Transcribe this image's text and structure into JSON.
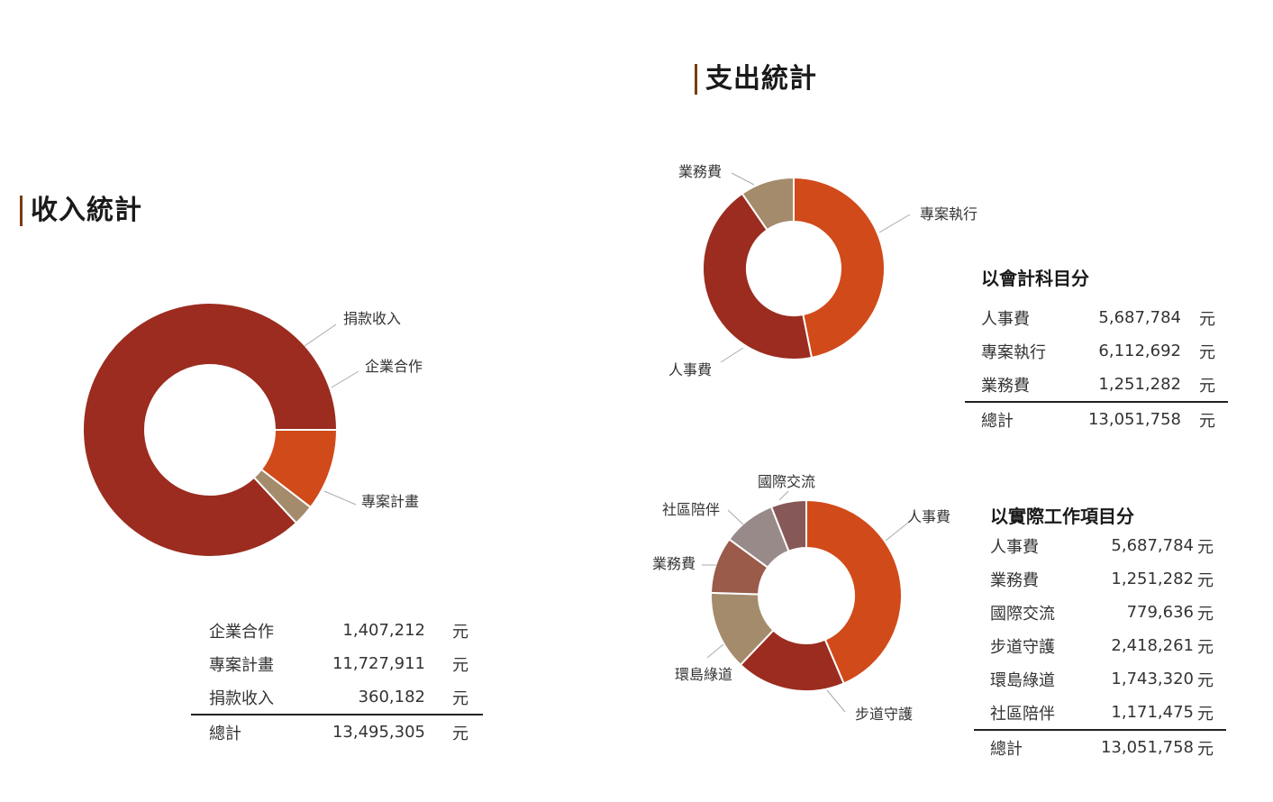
{
  "income": {
    "title": "收入統計",
    "rows": [
      {
        "label": "企業合作",
        "value": "1,407,212",
        "unit": "元"
      },
      {
        "label": "專案計畫",
        "value": "11,727,911",
        "unit": "元"
      },
      {
        "label": "捐款收入",
        "value": "360,182",
        "unit": "元"
      }
    ],
    "total": {
      "label": "總計",
      "value": "13,495,305",
      "unit": "元"
    }
  },
  "expense": {
    "title": "支出統計",
    "by_account": {
      "title": "以會計科目分",
      "rows": [
        {
          "label": "人事費",
          "value": "5,687,784",
          "unit": "元"
        },
        {
          "label": "專案執行",
          "value": "6,112,692",
          "unit": "元"
        },
        {
          "label": "業務費",
          "value": "1,251,282",
          "unit": "元"
        }
      ],
      "total": {
        "label": "總計",
        "value": "13,051,758",
        "unit": "元"
      }
    },
    "by_work": {
      "title": "以實際工作項目分",
      "rows": [
        {
          "label": "人事費",
          "value": "5,687,784",
          "unit": "元"
        },
        {
          "label": "業務費",
          "value": "1,251,282",
          "unit": "元"
        },
        {
          "label": "國際交流",
          "value": "779,636",
          "unit": "元"
        },
        {
          "label": "步道守護",
          "value": "2,418,261",
          "unit": "元"
        },
        {
          "label": "環島綠道",
          "value": "1,743,320",
          "unit": "元"
        },
        {
          "label": "社區陪伴",
          "value": "1,171,475",
          "unit": "元"
        }
      ],
      "total": {
        "label": "總計",
        "value": "13,051,758",
        "unit": "元"
      }
    }
  },
  "chart_data": [
    {
      "type": "pie",
      "style": "donut",
      "categories": [
        "專案計畫",
        "捐款收入",
        "企業合作"
      ],
      "values": [
        11727911,
        360182,
        1407212
      ],
      "colors": [
        "#9b2c1f",
        "#a48b6c",
        "#d14a1a"
      ],
      "start": "企業合作 at 3 o'clock, counterclockwise"
    },
    {
      "type": "pie",
      "style": "donut",
      "categories": [
        "專案執行",
        "人事費",
        "業務費"
      ],
      "values": [
        6112692,
        5687784,
        1251282
      ],
      "colors": [
        "#d14a1a",
        "#9b2c1f",
        "#a48b6c"
      ],
      "start": "12 o'clock, clockwise"
    },
    {
      "type": "pie",
      "style": "donut",
      "categories": [
        "人事費",
        "步道守護",
        "環島綠道",
        "業務費",
        "社區陪伴",
        "國際交流"
      ],
      "values": [
        5687784,
        2418261,
        1743320,
        1251282,
        1171475,
        779636
      ],
      "colors": [
        "#d14a1a",
        "#9b2c1f",
        "#a48b6c",
        "#9a5b4b",
        "#978a88",
        "#875858"
      ],
      "start": "12 o'clock, clockwise"
    }
  ]
}
